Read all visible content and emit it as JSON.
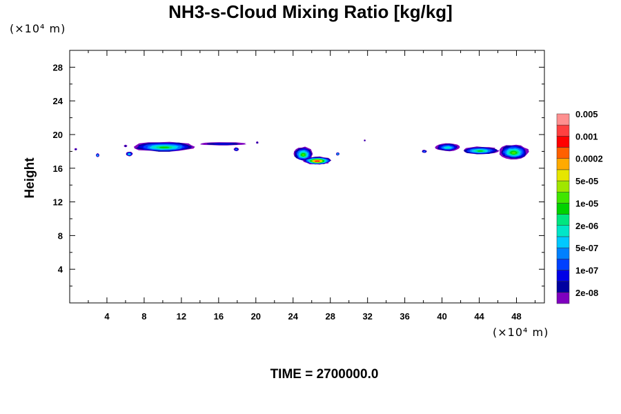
{
  "chart_data": {
    "type": "heatmap",
    "title": "NH3-s-Cloud Mixing Ratio [kg/kg]",
    "ylabel": "Height",
    "x_unit": "(×10⁴ m)",
    "y_unit": "(×10⁴ m)",
    "xlim": [
      0,
      51
    ],
    "ylim": [
      0,
      30
    ],
    "x_ticks": [
      4,
      8,
      12,
      16,
      20,
      24,
      28,
      32,
      36,
      40,
      44,
      48
    ],
    "y_ticks": [
      4,
      8,
      12,
      16,
      20,
      24,
      28
    ],
    "time_label": "TIME = 2700000.0",
    "colorbar": {
      "colors": [
        "#7f00bf",
        "#0000a0",
        "#0000e6",
        "#0040ff",
        "#0080ff",
        "#00c8ff",
        "#00e6c8",
        "#00e680",
        "#00d200",
        "#40e600",
        "#a0e600",
        "#e6e600",
        "#ffaa00",
        "#ff6000",
        "#ff0000",
        "#ff4040",
        "#ff9090"
      ],
      "labels": [
        "2e-08",
        "1e-07",
        "5e-07",
        "2e-06",
        "1e-05",
        "5e-05",
        "0.0002",
        "0.001",
        "0.005"
      ]
    },
    "clouds": [
      {
        "x0": 6.5,
        "x1": 13.8,
        "y_top": 19.2,
        "y_bot": 17.9,
        "core_level": 8
      },
      {
        "x0": 13.8,
        "x1": 19.2,
        "y_top": 19.1,
        "y_bot": 18.7,
        "core_level": 2
      },
      {
        "x0": 6.0,
        "x1": 6.8,
        "y_top": 18.0,
        "y_bot": 17.4,
        "core_level": 6
      },
      {
        "x0": 17.6,
        "x1": 18.2,
        "y_top": 18.5,
        "y_bot": 18.0,
        "core_level": 4
      },
      {
        "x0": 2.8,
        "x1": 3.2,
        "y_top": 17.8,
        "y_bot": 17.3,
        "core_level": 6
      },
      {
        "x0": 0.5,
        "x1": 0.8,
        "y_top": 18.4,
        "y_bot": 18.1,
        "core_level": 1
      },
      {
        "x0": 5.8,
        "x1": 6.2,
        "y_top": 18.8,
        "y_bot": 18.5,
        "core_level": 1
      },
      {
        "x0": 20.0,
        "x1": 20.3,
        "y_top": 19.2,
        "y_bot": 18.9,
        "core_level": 1
      },
      {
        "x0": 24.0,
        "x1": 26.2,
        "y_top": 18.6,
        "y_bot": 16.8,
        "core_level": 9
      },
      {
        "x0": 25.0,
        "x1": 28.2,
        "y_top": 17.4,
        "y_bot": 16.4,
        "core_level": 15
      },
      {
        "x0": 28.6,
        "x1": 29.0,
        "y_top": 17.9,
        "y_bot": 17.5,
        "core_level": 7
      },
      {
        "x0": 31.6,
        "x1": 31.8,
        "y_top": 19.4,
        "y_bot": 19.2,
        "core_level": 1
      },
      {
        "x0": 37.8,
        "x1": 38.4,
        "y_top": 18.2,
        "y_bot": 17.8,
        "core_level": 4
      },
      {
        "x0": 39.2,
        "x1": 42.0,
        "y_top": 19.0,
        "y_bot": 18.0,
        "core_level": 6
      },
      {
        "x0": 42.0,
        "x1": 46.2,
        "y_top": 18.6,
        "y_bot": 17.6,
        "core_level": 8
      },
      {
        "x0": 46.0,
        "x1": 49.4,
        "y_top": 18.9,
        "y_bot": 17.0,
        "core_level": 9
      }
    ]
  }
}
